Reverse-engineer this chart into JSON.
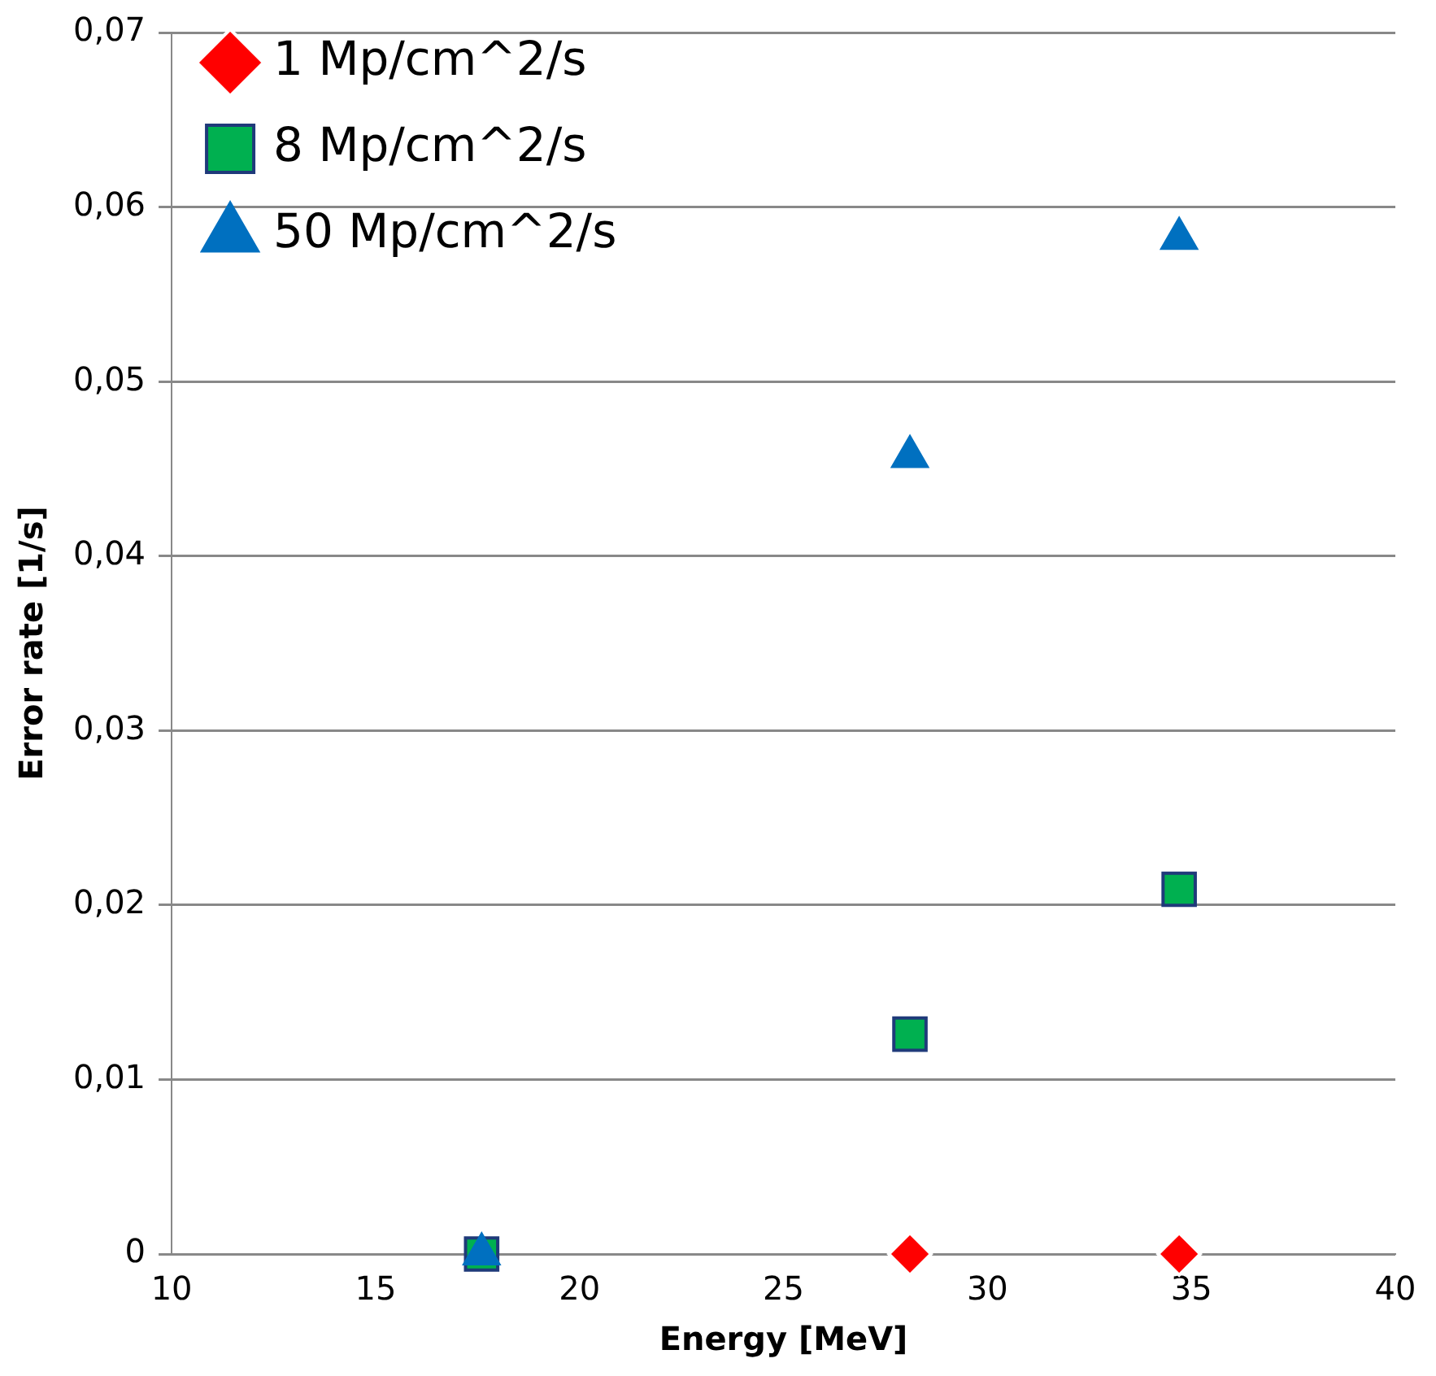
{
  "chart_data": {
    "type": "scatter",
    "xlabel": "Energy [MeV]",
    "ylabel": "Error rate [1/s]",
    "xlim": [
      10,
      40
    ],
    "xticks": [
      10,
      15,
      20,
      25,
      30,
      35,
      40
    ],
    "ylim": [
      0,
      0.07
    ],
    "yticks": [
      {
        "value": 0,
        "label": "0"
      },
      {
        "value": 0.01,
        "label": "0,01"
      },
      {
        "value": 0.02,
        "label": "0,02"
      },
      {
        "value": 0.03,
        "label": "0,03"
      },
      {
        "value": 0.04,
        "label": "0,04"
      },
      {
        "value": 0.05,
        "label": "0,05"
      },
      {
        "value": 0.06,
        "label": "0,06"
      },
      {
        "value": 0.07,
        "label": "0,07"
      }
    ],
    "grid": "y",
    "legend": "top left",
    "series": [
      {
        "name": "1 Mp/cm^2/s",
        "color": "#ff0000",
        "marker": "diamond",
        "x": [
          28.1,
          34.7
        ],
        "values": [
          0,
          0
        ]
      },
      {
        "name": "8 Mp/cm^2/s",
        "color": "#00b050",
        "marker": "square",
        "x": [
          17.6,
          28.1,
          34.7
        ],
        "values": [
          0,
          0.0126,
          0.0209
        ]
      },
      {
        "name": "50 Mp/cm^2/s",
        "color": "#0070c0",
        "marker": "triangle",
        "x": [
          17.6,
          28.1,
          34.7
        ],
        "values": [
          0,
          0.0457,
          0.0582
        ]
      }
    ]
  }
}
